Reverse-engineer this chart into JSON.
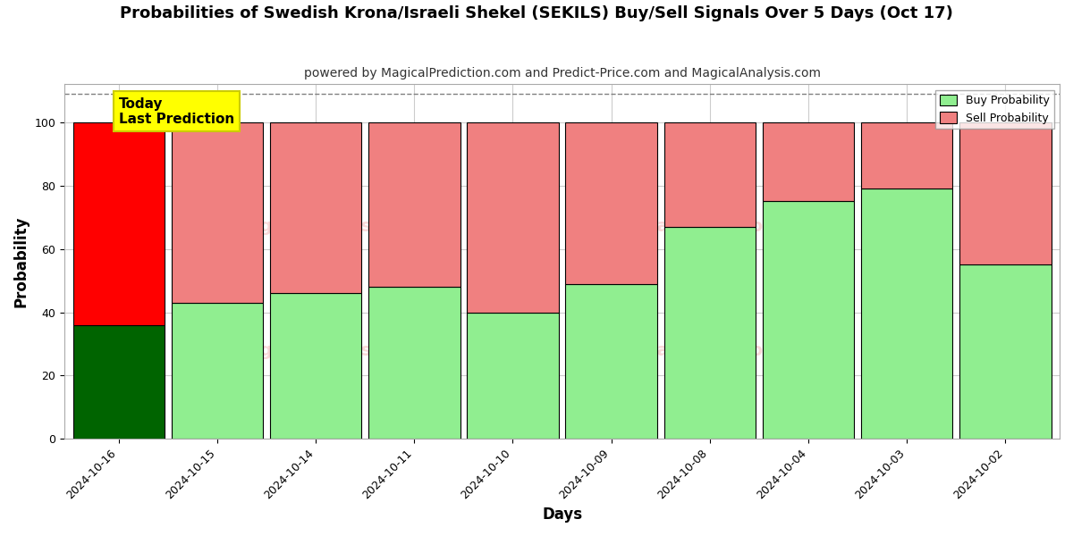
{
  "title": "Probabilities of Swedish Krona/Israeli Shekel (SEKILS) Buy/Sell Signals Over 5 Days (Oct 17)",
  "subtitle": "powered by MagicalPrediction.com and Predict-Price.com and MagicalAnalysis.com",
  "xlabel": "Days",
  "ylabel": "Probability",
  "categories": [
    "2024-10-16",
    "2024-10-15",
    "2024-10-14",
    "2024-10-11",
    "2024-10-10",
    "2024-10-09",
    "2024-10-08",
    "2024-10-04",
    "2024-10-03",
    "2024-10-02"
  ],
  "buy_values": [
    36,
    43,
    46,
    48,
    40,
    49,
    67,
    75,
    79,
    55
  ],
  "sell_values": [
    64,
    57,
    54,
    52,
    60,
    51,
    33,
    25,
    21,
    45
  ],
  "today_index": 0,
  "buy_color_today": "#006400",
  "sell_color_today": "#FF0000",
  "buy_color_normal": "#90EE90",
  "sell_color_normal": "#F08080",
  "bar_edge_color": "#000000",
  "annotation_text": "Today\nLast Prediction",
  "annotation_bg": "#FFFF00",
  "annotation_border": "#cccc00",
  "ylim": [
    0,
    112
  ],
  "dashed_line_y": 109,
  "legend_buy": "Buy Probability",
  "legend_sell": "Sell Probability",
  "grid_color": "#cccccc",
  "bg_color": "#ffffff",
  "title_fontsize": 13,
  "subtitle_fontsize": 10,
  "axis_label_fontsize": 12,
  "tick_fontsize": 9,
  "bar_width": 0.93
}
